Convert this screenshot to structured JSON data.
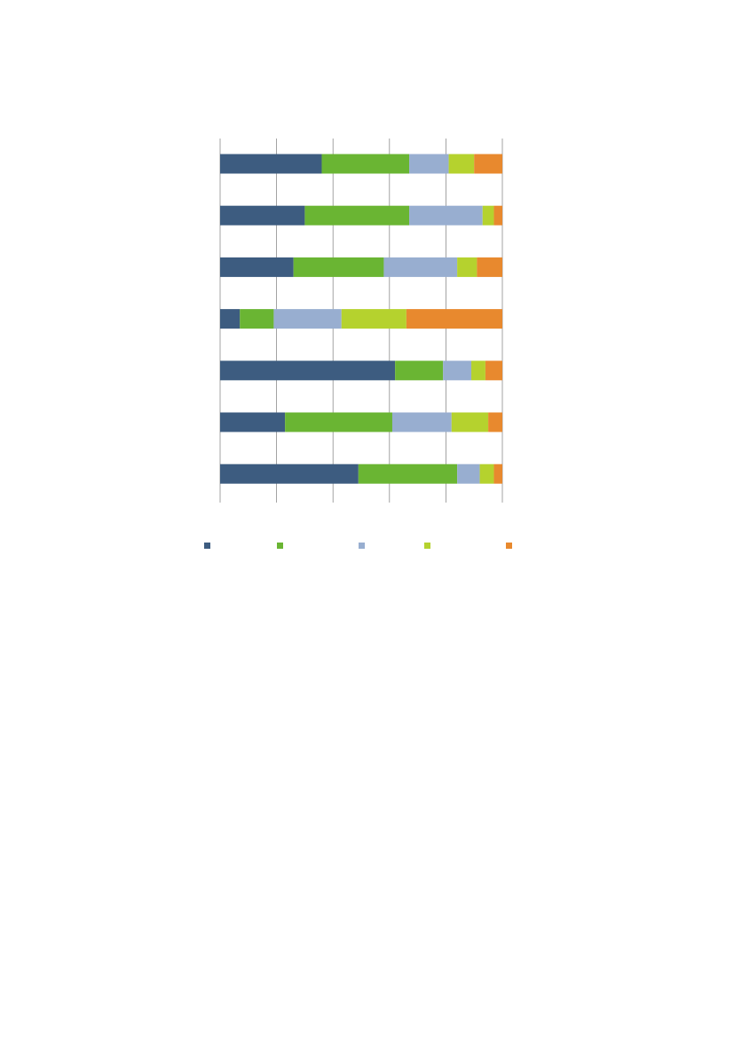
{
  "chart_data": {
    "type": "bar",
    "orientation": "horizontal",
    "stacked": "percent",
    "xlim": [
      0,
      100
    ],
    "x_gridlines": [
      0,
      20,
      40,
      60,
      80,
      100
    ],
    "grid": true,
    "legend_position": "bottom",
    "colors": [
      "#3d5c80",
      "#6ab533",
      "#98aed0",
      "#b5d22e",
      "#e8892e"
    ],
    "categories": [
      "",
      "",
      "",
      "",
      "",
      "",
      ""
    ],
    "series": [
      {
        "values": [
          36,
          30,
          26,
          7,
          62,
          23,
          49
        ]
      },
      {
        "values": [
          31,
          37,
          32,
          12,
          17,
          38,
          35
        ]
      },
      {
        "values": [
          14,
          26,
          26,
          24,
          10,
          21,
          8
        ]
      },
      {
        "values": [
          9,
          4,
          7,
          23,
          5,
          13,
          5
        ]
      },
      {
        "values": [
          10,
          3,
          9,
          34,
          6,
          5,
          3
        ]
      }
    ]
  }
}
